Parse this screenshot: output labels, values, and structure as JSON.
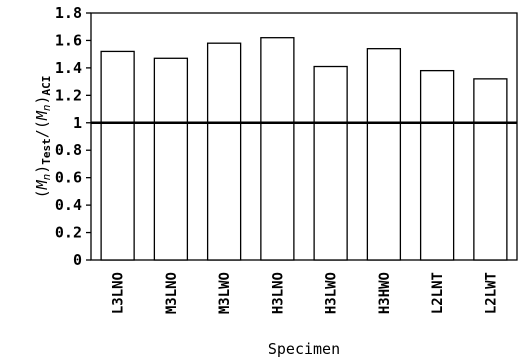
{
  "chart_data": {
    "type": "bar",
    "categories": [
      "L3LNO",
      "M3LNO",
      "M3LWO",
      "H3LNO",
      "H3LWO",
      "H3HWO",
      "L2LNT",
      "L2LWT"
    ],
    "values": [
      1.52,
      1.47,
      1.58,
      1.62,
      1.41,
      1.54,
      1.38,
      1.32
    ],
    "ylabel": "(Mn)Test/(Mn)ACI",
    "ylabel_parts": {
      "m1": "M",
      "n1": "n",
      "sub1": "Test",
      "m2": "M",
      "n2": "n",
      "sub2": "ACI"
    },
    "xlabel": "Specimen",
    "ylim": [
      0,
      1.8
    ],
    "yticks": [
      0,
      0.2,
      0.4,
      0.6,
      0.8,
      1,
      1.2,
      1.4,
      1.6,
      1.8
    ],
    "reference_line": 1,
    "grid": false,
    "legend": "none",
    "colors": {
      "bar_fill": "#ffffff",
      "bar_stroke": "#000000",
      "axis": "#000000",
      "reference_line": "#000000"
    }
  }
}
